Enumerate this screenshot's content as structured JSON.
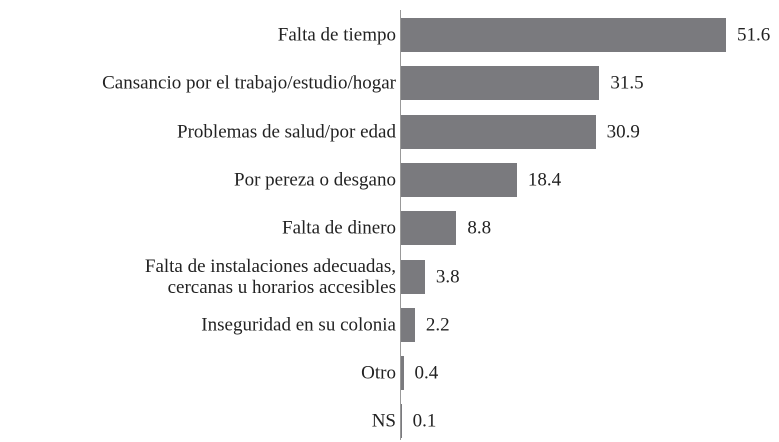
{
  "chart_data": {
    "type": "bar",
    "orientation": "horizontal",
    "categories": [
      "Falta de tiempo",
      "Cansancio por el trabajo/estudio/hogar",
      "Problemas de salud/por edad",
      "Por pereza o desgano",
      "Falta de dinero",
      "Falta de instalaciones adecuadas,\ncercanas u horarios accesibles",
      "Inseguridad en su colonia",
      "Otro",
      "NS"
    ],
    "values": [
      51.6,
      31.5,
      30.9,
      18.4,
      8.8,
      3.8,
      2.2,
      0.4,
      0.1
    ],
    "color": "#7a7a7e"
  }
}
